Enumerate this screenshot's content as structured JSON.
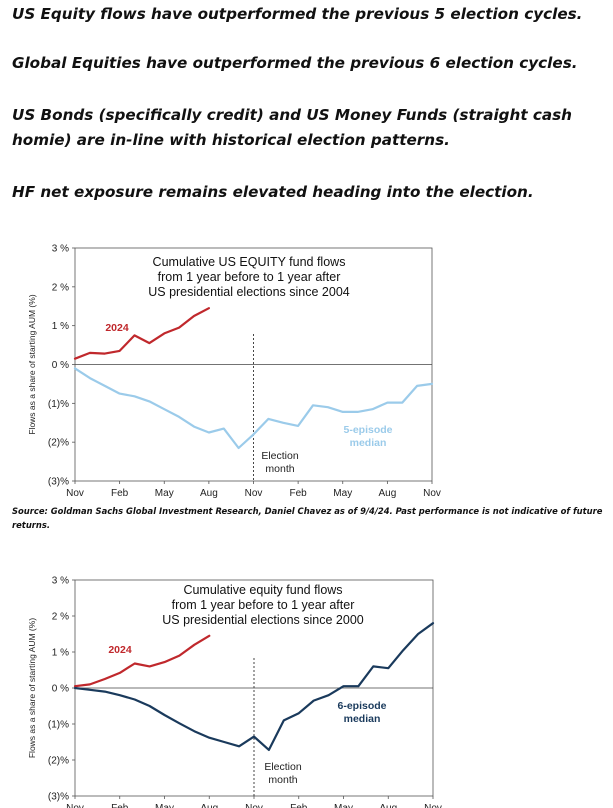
{
  "headlines": [
    "US Equity flows have outperformed the previous 5 election cycles.",
    "Global Equities have outperformed the previous 6 election cycles.",
    "US Bonds (specifically credit) and US Money Funds (straight cash homie) are in-line with historical election patterns.",
    "HF net exposure remains elevated heading into the election."
  ],
  "source_note": "Source: Goldman Sachs Global Investment Research, Daniel Chavez  as of 9/4/24. Past performance is not indicative of future returns.",
  "chart_data": [
    {
      "type": "line",
      "title_lines": [
        "Cumulative US EQUITY fund flows",
        "from 1 year before to 1 year after",
        "US presidential elections since 2004"
      ],
      "ylabel": "Flows as a share of starting AUM (%)",
      "y_ticks": [
        "3 %",
        "2 %",
        "1 %",
        "0 %",
        "(1)%",
        "(2)%",
        "(3)%"
      ],
      "ylim": [
        -3,
        3
      ],
      "x_ticks": [
        "Nov",
        "Feb",
        "May",
        "Aug",
        "Nov",
        "Feb",
        "May",
        "Aug",
        "Nov"
      ],
      "xlim": [
        0,
        24
      ],
      "election_label": [
        "Election",
        "month"
      ],
      "election_x": 12,
      "series": [
        {
          "name": "2024",
          "color": "#c0282c",
          "x": [
            0,
            1,
            2,
            3,
            4,
            5,
            6,
            7,
            8,
            9
          ],
          "y": [
            0.15,
            0.3,
            0.28,
            0.35,
            0.75,
            0.55,
            0.8,
            0.95,
            1.25,
            1.45
          ]
        },
        {
          "name": "5-episode median",
          "color": "#9bcbea",
          "label_lines": [
            "5-episode",
            "median"
          ],
          "x": [
            0,
            1,
            2,
            3,
            4,
            5,
            6,
            7,
            8,
            9,
            10,
            11,
            12,
            13,
            14,
            15,
            16,
            17,
            18,
            19,
            20,
            21,
            22,
            23,
            24
          ],
          "y": [
            -0.1,
            -0.35,
            -0.55,
            -0.75,
            -0.82,
            -0.95,
            -1.15,
            -1.35,
            -1.6,
            -1.75,
            -1.65,
            -2.15,
            -1.8,
            -1.4,
            -1.5,
            -1.58,
            -1.05,
            -1.1,
            -1.22,
            -1.22,
            -1.15,
            -0.98,
            -0.98,
            -0.55,
            -0.5
          ]
        }
      ]
    },
    {
      "type": "line",
      "title_lines": [
        "Cumulative equity fund flows",
        "from 1 year before to 1 year after",
        "US presidential elections since 2000"
      ],
      "ylabel": "Flows as a share of starting AUM (%)",
      "y_ticks": [
        "3 %",
        "2 %",
        "1 %",
        "0 %",
        "(1)%",
        "(2)%",
        "(3)%"
      ],
      "ylim": [
        -3,
        3
      ],
      "x_ticks": [
        "Nov",
        "Feb",
        "May",
        "Aug",
        "Nov",
        "Feb",
        "May",
        "Aug",
        "Nov"
      ],
      "xlim": [
        0,
        24
      ],
      "election_label": [
        "Election",
        "month"
      ],
      "election_x": 12,
      "series": [
        {
          "name": "2024",
          "color": "#c0282c",
          "x": [
            0,
            1,
            2,
            3,
            4,
            5,
            6,
            7,
            8,
            9
          ],
          "y": [
            0.05,
            0.1,
            0.25,
            0.42,
            0.68,
            0.6,
            0.72,
            0.9,
            1.2,
            1.45
          ]
        },
        {
          "name": "6-episode median",
          "color": "#1a3a5c",
          "label_lines": [
            "6-episode",
            "median"
          ],
          "x": [
            0,
            1,
            2,
            3,
            4,
            5,
            6,
            7,
            8,
            9,
            10,
            11,
            12,
            13,
            14,
            15,
            16,
            17,
            18,
            19,
            20,
            21,
            22,
            23,
            24
          ],
          "y": [
            0.0,
            -0.05,
            -0.1,
            -0.2,
            -0.32,
            -0.5,
            -0.75,
            -0.98,
            -1.2,
            -1.38,
            -1.5,
            -1.62,
            -1.35,
            -1.72,
            -0.9,
            -0.7,
            -0.35,
            -0.2,
            0.05,
            0.05,
            0.6,
            0.55,
            1.05,
            1.5,
            1.8
          ]
        }
      ]
    }
  ]
}
